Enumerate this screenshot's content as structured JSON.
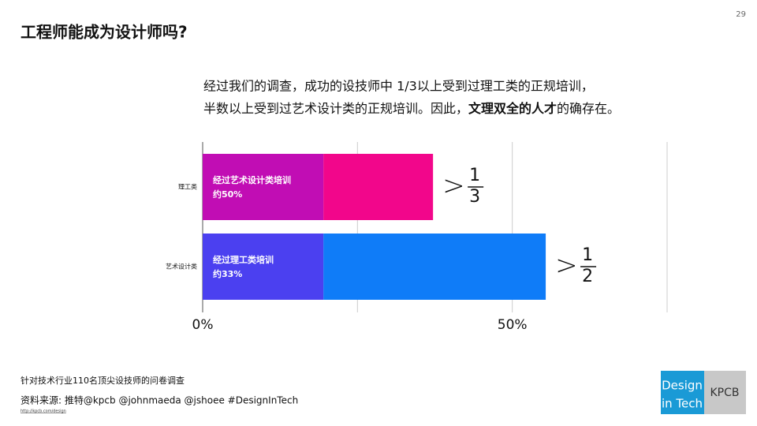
{
  "page_number": "29",
  "title": "工程师能成为设计师吗?",
  "subtitle": {
    "line1": "经过我们的调查，成功的设技师中 1/3以上受到过理工类的正规培训，",
    "line2": [
      "半数以上受到过艺术设计类的正规培训。因此，",
      "文理双全的人才",
      "的确存在。"
    ]
  },
  "chart_data": {
    "type": "stacked-barh",
    "categories": [
      "理工类",
      "艺术设计类"
    ],
    "series": [
      {
        "colors": [
          "#c10db4",
          "#4b40f0"
        ],
        "values": [
          19.5,
          19.5
        ]
      },
      {
        "colors": [
          "#f2068b",
          "#0f7cf8"
        ],
        "values": [
          17.7,
          35.9
        ]
      }
    ],
    "bar_labels": [
      [
        "经过艺术设计类培训",
        "约50%"
      ],
      [
        "经过理工类培训",
        "约33%"
      ]
    ],
    "fractions": [
      {
        "symbol": ">",
        "numerator": "1",
        "denominator": "3"
      },
      {
        "symbol": ">",
        "numerator": "1",
        "denominator": "2"
      }
    ],
    "xlim": [
      0,
      75
    ],
    "xticks": [
      {
        "value": 0,
        "label": "0%"
      },
      {
        "value": 50,
        "label": "50%"
      }
    ],
    "xminor": [
      25,
      75
    ],
    "grid": true
  },
  "footer": {
    "note": "针对技术行业110名顶尖设技师的问卷调查",
    "source": "资料来源: 推特@kpcb @johnmaeda @jshoee #DesignInTech",
    "url": "http://kpcb.com/design"
  },
  "logo": {
    "line1": "Design",
    "line2": "in Tech",
    "brand": "KPCB"
  }
}
